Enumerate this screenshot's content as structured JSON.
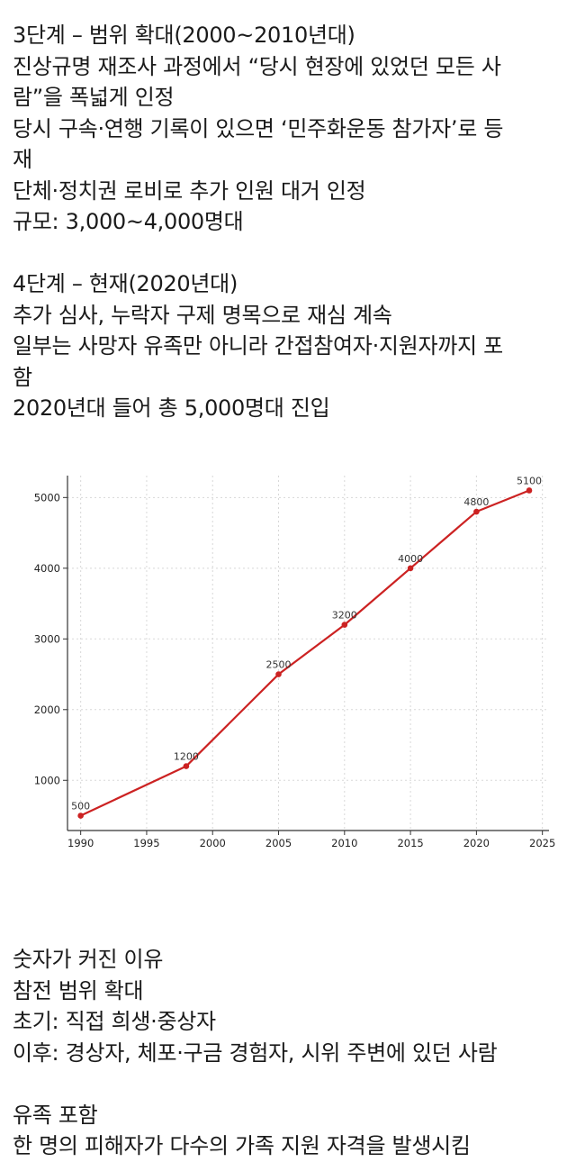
{
  "top_lines": [
    "3단계 – 범위 확대(2000~2010년대)",
    "진상규명 재조사 과정에서 “당시 현장에 있었던 모든 사",
    "람”을 폭넓게 인정",
    "당시 구속·연행 기록이 있으면 ‘민주화운동 참가자’로 등",
    "재",
    "단체·정치권 로비로 추가 인원 대거 인정",
    "규모: 3,000~4,000명대",
    "",
    "4단계 – 현재(2020년대)",
    "추가 심사, 누락자 구제 명목으로 재심 계속",
    "일부는 사망자 유족만 아니라 간접참여자·지원자까지 포",
    "함",
    "2020년대 들어 총 5,000명대 진입"
  ],
  "bottom_lines": [
    "숫자가 커진 이유",
    "참전 범위 확대",
    "초기: 직접 희생·중상자",
    "이후: 경상자, 체포·구금 경험자, 시위 주변에 있던 사람",
    "",
    "유족 포함",
    "한 명의 피해자가 다수의 가족 지원 자격을 발생시킴"
  ],
  "chart_data": {
    "type": "line",
    "title": "",
    "xlabel": "",
    "ylabel": "",
    "x": [
      1990,
      1998,
      2005,
      2010,
      2015,
      2020,
      2024
    ],
    "series": [
      {
        "values": [
          500,
          1200,
          2500,
          3200,
          4000,
          4800,
          5100
        ],
        "color": "#cc2222"
      }
    ],
    "point_labels": [
      "500",
      "1200",
      "2500",
      "3200",
      "4000",
      "4800",
      "5100"
    ],
    "xticks": [
      1990,
      1995,
      2000,
      2005,
      2010,
      2015,
      2020,
      2025
    ],
    "xtick_labels": [
      "1990",
      "1995",
      "2000",
      "2005",
      "2010",
      "2015",
      "2020",
      "2025"
    ],
    "yticks": [
      1000,
      2000,
      3000,
      4000,
      5000
    ],
    "ytick_labels": [
      "1000",
      "2000",
      "3000",
      "4000",
      "5000"
    ],
    "xlim": [
      1989,
      2025.5
    ],
    "ylim": [
      290,
      5310
    ],
    "grid": true,
    "legend": "none"
  }
}
